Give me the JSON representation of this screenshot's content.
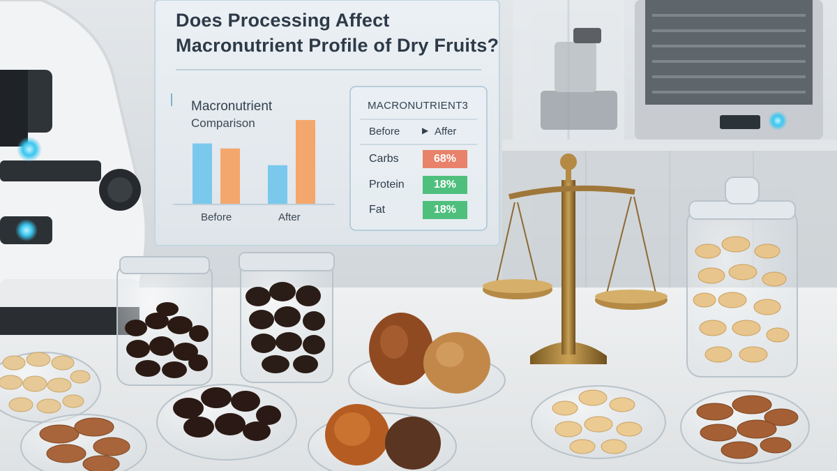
{
  "headline": {
    "line1": "Does Processing Affect",
    "line2": "Macronutrient Profile of Dry Fruits?"
  },
  "chart_data": {
    "type": "bar",
    "title": "Macronutrient Comparison",
    "title_line1": "Macronutrient",
    "title_line2": "Comparison",
    "categories": [
      "Before",
      "After"
    ],
    "series": [
      {
        "values": [
          0.72,
          0.46
        ],
        "color": "#6fc4ec"
      },
      {
        "values": [
          0.66,
          1.0
        ],
        "color": "#f5a05e"
      }
    ],
    "ylim": [
      0,
      1
    ],
    "grid": false
  },
  "table": {
    "heading": "MACRONUTRIENT3",
    "before_label": "Before",
    "after_label": "Affer",
    "arrow_icon": "play-arrow-icon",
    "rows": [
      {
        "label": "Carbs",
        "value": "68%",
        "color": "#e8826b"
      },
      {
        "label": "Protein",
        "value": "18%",
        "color": "#4fbf7d"
      },
      {
        "label": "Fat",
        "value": "18%",
        "color": "#4fbf7d"
      }
    ]
  },
  "scene_objects": [
    "microscope",
    "glass-jar-raisins",
    "glass-jar-dates",
    "brass-balance-scale",
    "glass-jar-cashews",
    "dish-peanuts",
    "dish-almonds",
    "dish-raisins",
    "dish-dried-apricots",
    "dish-cashews",
    "dish-almonds-right",
    "lab-device"
  ]
}
